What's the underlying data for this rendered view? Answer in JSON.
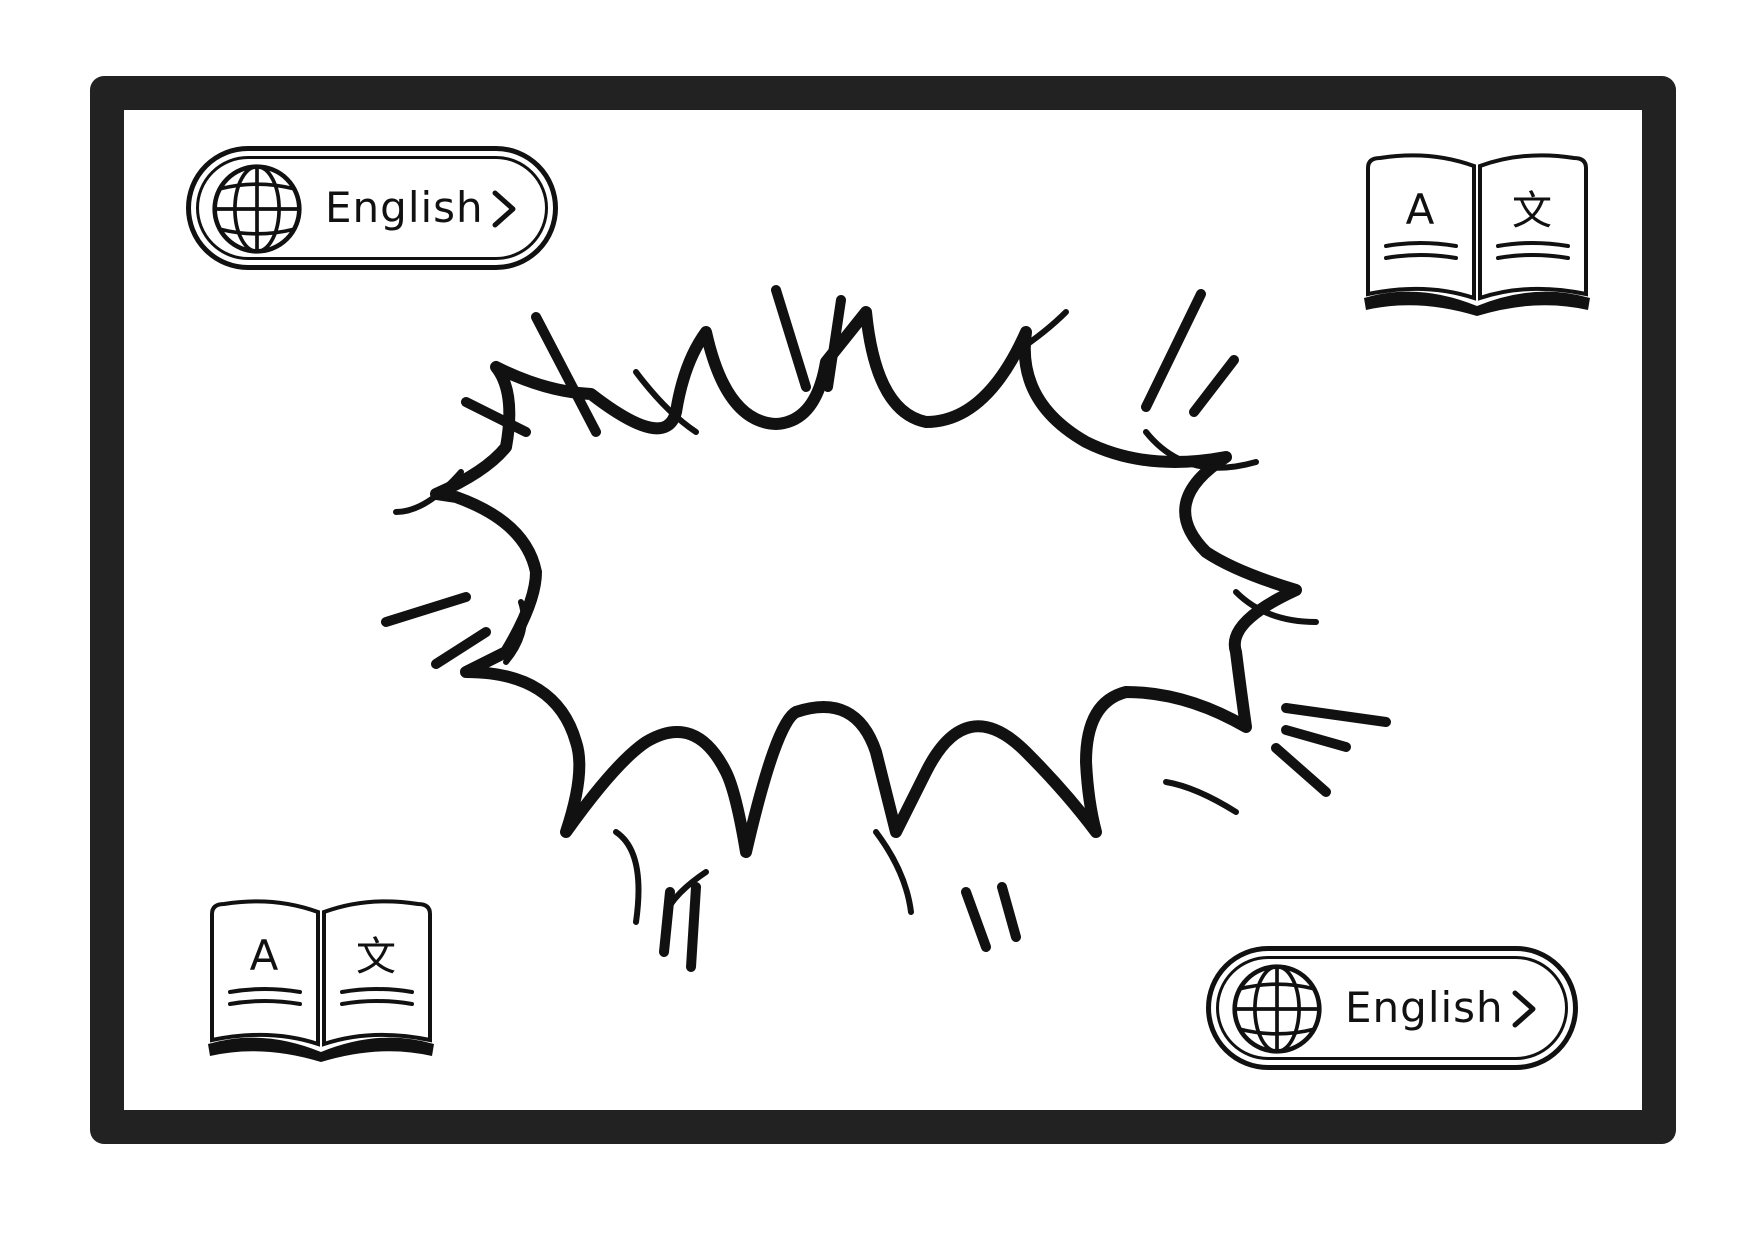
{
  "language_selector_top": {
    "label": "English",
    "icon": "globe-icon",
    "chevron": "chevron-right-icon"
  },
  "language_selector_bottom": {
    "label": "English",
    "icon": "globe-icon",
    "chevron": "chevron-right-icon"
  },
  "dictionary_icon_top": {
    "icon": "translation-book-icon",
    "left_glyph": "A",
    "right_glyph": "文"
  },
  "dictionary_icon_bottom": {
    "icon": "translation-book-icon",
    "left_glyph": "A",
    "right_glyph": "文"
  },
  "burst": {
    "icon": "comic-burst-icon"
  },
  "colors": {
    "frame": "#222222",
    "ink": "#111111",
    "background": "#ffffff"
  }
}
